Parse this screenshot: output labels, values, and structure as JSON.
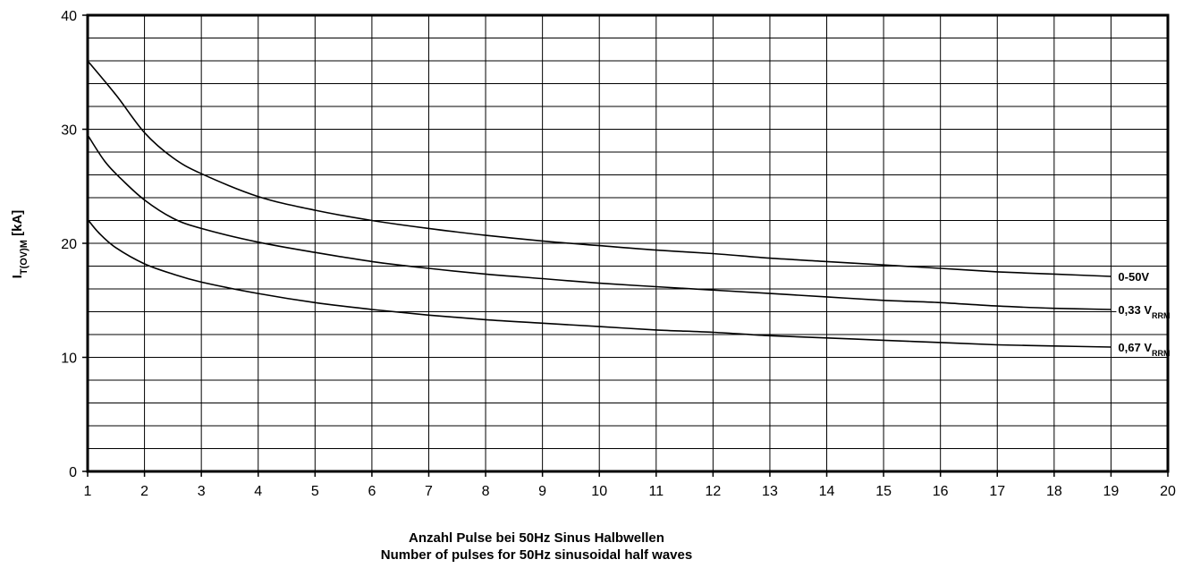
{
  "chart_data": {
    "type": "line",
    "title": "",
    "xlabel": [
      "Anzahl Pulse bei 50Hz Sinus Halbwellen",
      "Number of pulses for 50Hz sinusoidal  half waves"
    ],
    "ylabel": {
      "main": "I",
      "sub": "T(OV)M",
      "unit": " [kA]"
    },
    "xlim": [
      1,
      20
    ],
    "ylim": [
      0,
      40
    ],
    "x_ticks": [
      "1",
      "2",
      "3",
      "4",
      "5",
      "6",
      "7",
      "8",
      "9",
      "10",
      "11",
      "12",
      "13",
      "14",
      "15",
      "16",
      "17",
      "18",
      "19",
      "20"
    ],
    "y_ticks": [
      "0",
      "10",
      "20",
      "30",
      "40"
    ],
    "grid": true,
    "series": [
      {
        "name": "0-50V",
        "label_main": "0-50V",
        "label_sub": "",
        "x": [
          1,
          1.5,
          2,
          2.5,
          3,
          4,
          5,
          6,
          7,
          8,
          9,
          10,
          11,
          12,
          13,
          14,
          15,
          16,
          17,
          18,
          19
        ],
        "y": [
          36,
          33,
          29.7,
          27.5,
          26.1,
          24.1,
          22.9,
          22,
          21.3,
          20.7,
          20.2,
          19.8,
          19.4,
          19.1,
          18.7,
          18.4,
          18.1,
          17.8,
          17.5,
          17.3,
          17.1
        ]
      },
      {
        "name": "0,33 VRRM",
        "label_main": "0,33 V",
        "label_sub": "RRM",
        "x": [
          1,
          1.3,
          1.6,
          2,
          2.5,
          3,
          4,
          5,
          6,
          7,
          8,
          9,
          10,
          11,
          12,
          13,
          14,
          15,
          16,
          17,
          18,
          19
        ],
        "y": [
          29.5,
          27.2,
          25.6,
          23.8,
          22.2,
          21.3,
          20.1,
          19.2,
          18.4,
          17.8,
          17.3,
          16.9,
          16.5,
          16.2,
          15.9,
          15.6,
          15.3,
          15,
          14.8,
          14.5,
          14.3,
          14.2
        ]
      },
      {
        "name": "0,67 VRRM",
        "label_main": "0,67 V",
        "label_sub": "RRM",
        "x": [
          1,
          1.2,
          1.5,
          2,
          2.5,
          3,
          4,
          5,
          6,
          7,
          8,
          9,
          10,
          11,
          12,
          13,
          14,
          15,
          16,
          17,
          18,
          19
        ],
        "y": [
          22.1,
          20.9,
          19.6,
          18.2,
          17.3,
          16.6,
          15.6,
          14.8,
          14.2,
          13.7,
          13.3,
          13,
          12.7,
          12.4,
          12.2,
          11.9,
          11.7,
          11.5,
          11.3,
          11.1,
          11,
          10.9
        ]
      }
    ]
  }
}
